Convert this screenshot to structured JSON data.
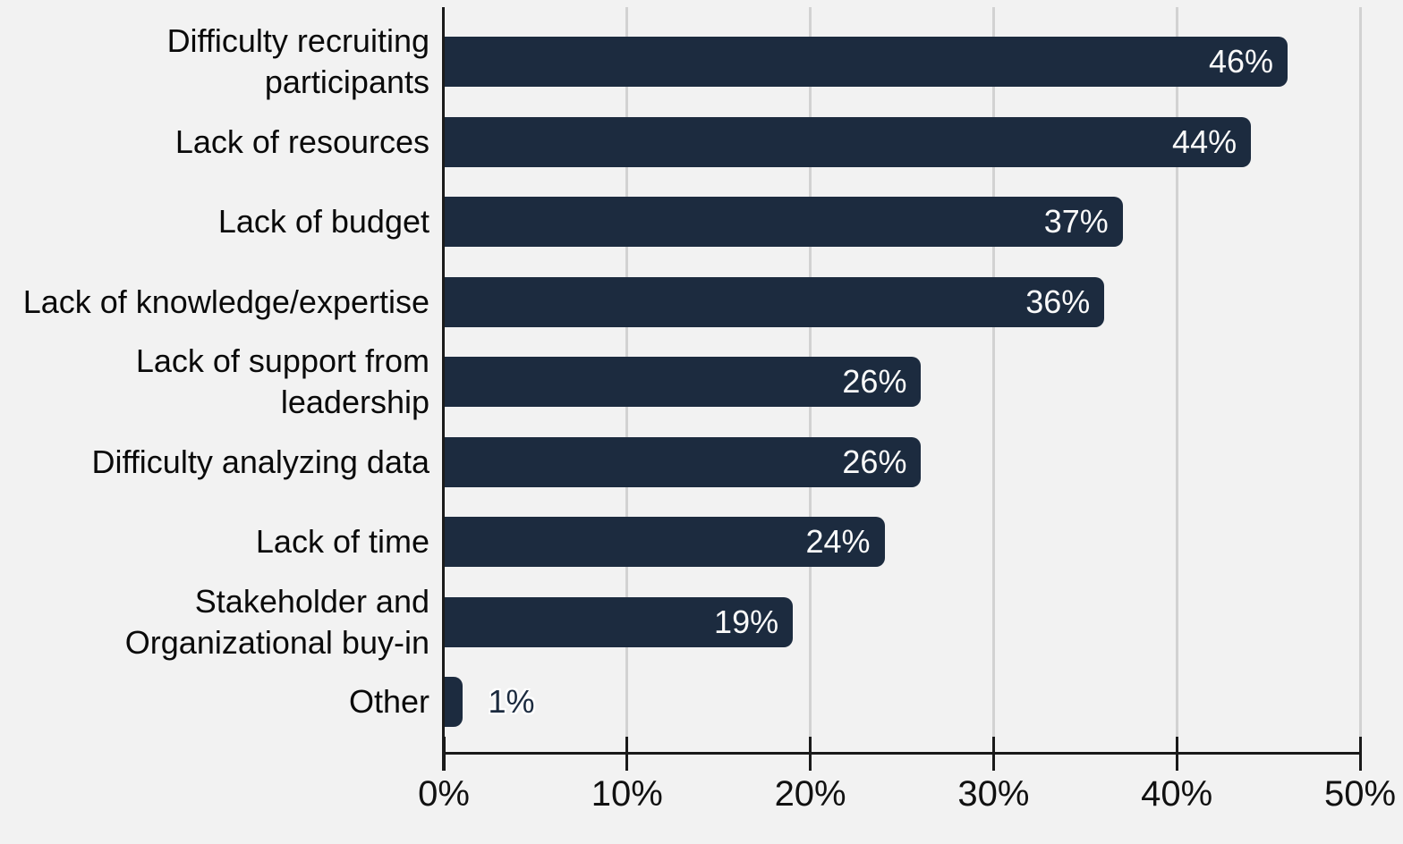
{
  "chart_data": {
    "type": "bar",
    "orientation": "horizontal",
    "title": "",
    "xlabel": "",
    "ylabel": "",
    "xlim": [
      0,
      50
    ],
    "x_tick_labels": [
      "0%",
      "10%",
      "20%",
      "30%",
      "40%",
      "50%"
    ],
    "grid": "vertical gridlines on, light gray",
    "legend": "none",
    "categories": [
      "Difficulty recruiting participants",
      "Lack of resources",
      "Lack of budget",
      "Lack of knowledge/expertise",
      "Lack of support from leadership",
      "Difficulty analyzing data",
      "Lack of time",
      "Stakeholder and Organizational buy-in",
      "Other"
    ],
    "values": [
      46,
      44,
      37,
      36,
      26,
      26,
      24,
      19,
      1
    ],
    "value_labels": [
      "46%",
      "44%",
      "37%",
      "36%",
      "26%",
      "26%",
      "24%",
      "19%",
      "1%"
    ],
    "colors": {
      "background": "#f2f2f2",
      "bar": "#1c2b3f",
      "gridline": "#d2d2d2",
      "axis": "#1a1a1a",
      "category_text": "#0a0a0a",
      "tick_text": "#111111",
      "value_text_inside": "#fafafa",
      "value_text_outside": "#1c2b3f",
      "value_outside_halo": "#ffffff"
    }
  }
}
